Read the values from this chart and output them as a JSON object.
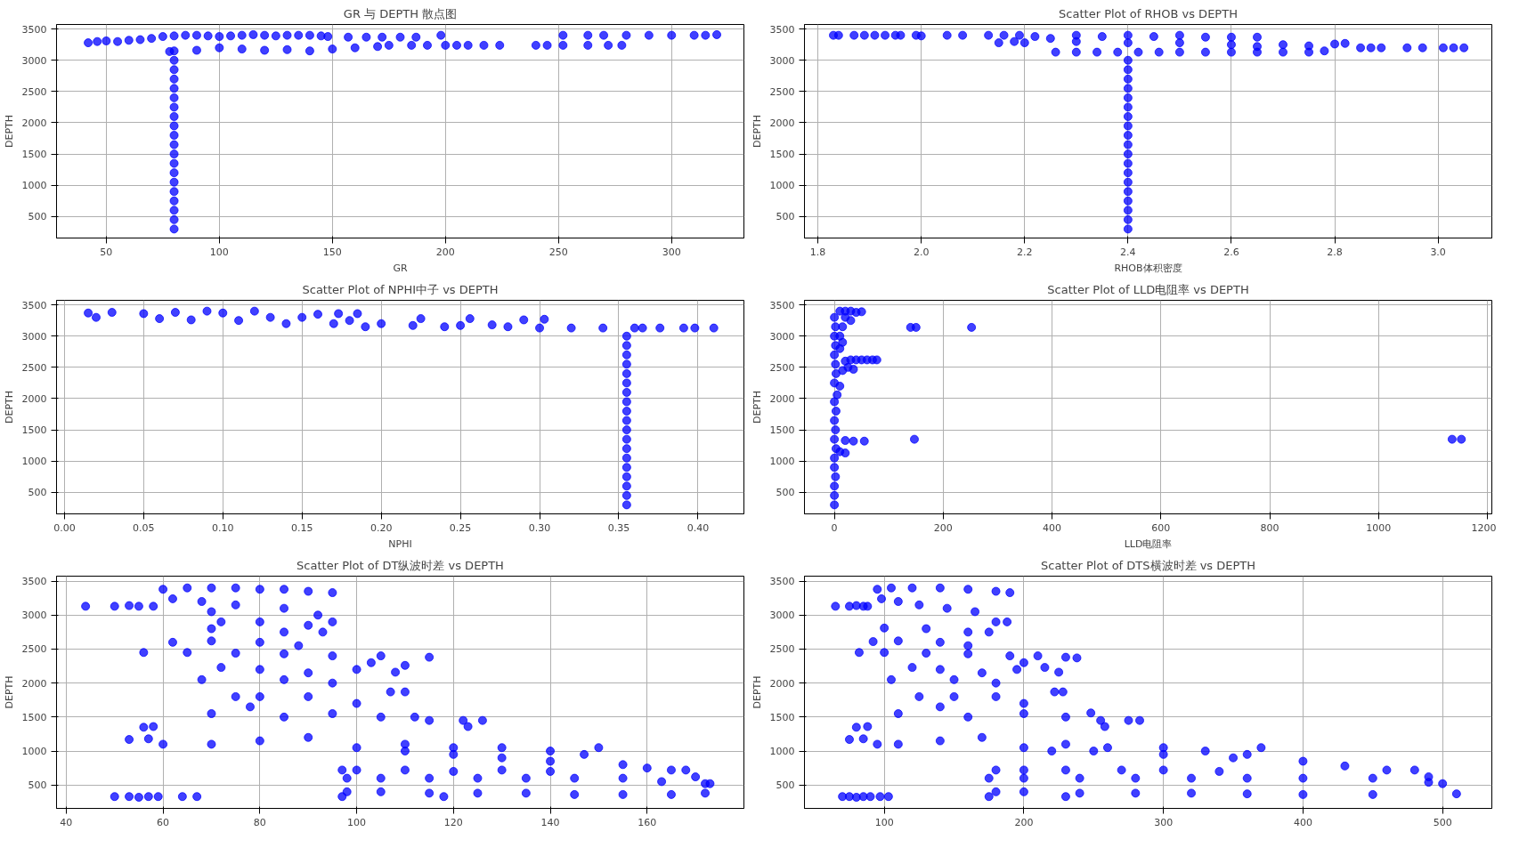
{
  "chart_data": [
    {
      "type": "scatter",
      "title": "GR 与 DEPTH 散点图",
      "xlabel": "GR",
      "ylabel": "DEPTH",
      "color": "#0000ff",
      "marker": "circle",
      "grid": true,
      "xlim": [
        28,
        332
      ],
      "ylim": [
        156,
        3573
      ],
      "xticks": [
        50,
        100,
        150,
        200,
        250,
        300
      ],
      "yticks": [
        500,
        1000,
        1500,
        2000,
        2500,
        3000,
        3500
      ],
      "x": [
        42,
        46,
        50,
        55,
        60,
        65,
        70,
        75,
        80,
        85,
        90,
        95,
        100,
        105,
        110,
        115,
        120,
        125,
        130,
        135,
        140,
        145,
        148,
        80,
        90,
        100,
        110,
        120,
        130,
        140,
        150,
        160,
        170,
        175,
        185,
        192,
        200,
        205,
        210,
        217,
        224,
        240,
        245,
        252,
        263,
        272,
        278,
        157,
        165,
        172,
        180,
        187,
        198,
        252,
        263,
        270,
        280,
        290,
        300,
        310,
        315,
        320,
        80,
        80,
        80,
        80,
        80,
        80,
        80,
        80,
        80,
        80,
        80,
        80,
        80,
        80,
        80,
        80,
        80,
        80,
        80,
        78
      ],
      "values": [
        3280,
        3300,
        3310,
        3300,
        3320,
        3330,
        3350,
        3380,
        3390,
        3400,
        3400,
        3390,
        3380,
        3390,
        3400,
        3410,
        3400,
        3390,
        3400,
        3400,
        3400,
        3390,
        3380,
        3150,
        3160,
        3200,
        3180,
        3160,
        3170,
        3150,
        3180,
        3200,
        3220,
        3240,
        3240,
        3240,
        3240,
        3240,
        3240,
        3240,
        3240,
        3240,
        3240,
        3240,
        3240,
        3240,
        3240,
        3370,
        3370,
        3370,
        3370,
        3370,
        3400,
        3400,
        3400,
        3400,
        3400,
        3400,
        3400,
        3400,
        3400,
        3410,
        300,
        450,
        600,
        750,
        900,
        1050,
        1200,
        1350,
        1500,
        1650,
        1800,
        1950,
        2100,
        2250,
        2400,
        2550,
        2700,
        2850,
        3000,
        3140
      ]
    },
    {
      "type": "scatter",
      "title": "Scatter Plot of RHOB vs DEPTH",
      "xlabel": "RHOB体积密度",
      "ylabel": "DEPTH",
      "color": "#0000ff",
      "marker": "circle",
      "grid": true,
      "xlim": [
        1.774,
        3.104
      ],
      "ylim": [
        156,
        3573
      ],
      "xticks": [
        1.8,
        {
          "value": 2,
          "label": "2.0"
        },
        2.2,
        2.4,
        2.6,
        2.8,
        {
          "value": 3,
          "label": "3.0"
        }
      ],
      "yticks": [
        500,
        1000,
        1500,
        2000,
        2500,
        3000,
        3500
      ],
      "x": [
        1.83,
        1.84,
        1.87,
        1.89,
        1.91,
        1.93,
        1.95,
        1.96,
        1.99,
        2.0,
        2.05,
        2.08,
        2.13,
        2.16,
        2.19,
        2.15,
        2.18,
        2.22,
        2.25,
        2.3,
        2.35,
        2.4,
        2.45,
        2.5,
        2.55,
        2.6,
        2.65,
        2.2,
        2.3,
        2.4,
        2.5,
        2.6,
        2.65,
        2.7,
        2.75,
        2.8,
        2.82,
        2.78,
        2.26,
        2.3,
        2.34,
        2.38,
        2.42,
        2.46,
        2.5,
        2.55,
        2.6,
        2.65,
        2.7,
        2.75,
        2.85,
        2.87,
        2.89,
        2.94,
        2.97,
        3.01,
        3.03,
        3.05,
        2.4,
        2.4,
        2.4,
        2.4,
        2.4,
        2.4,
        2.4,
        2.4,
        2.4,
        2.4,
        2.4,
        2.4,
        2.4,
        2.4,
        2.4,
        2.4,
        2.4,
        2.4,
        2.4
      ],
      "values": [
        3400,
        3400,
        3400,
        3400,
        3400,
        3400,
        3400,
        3400,
        3400,
        3390,
        3400,
        3400,
        3400,
        3400,
        3400,
        3280,
        3300,
        3380,
        3350,
        3400,
        3380,
        3400,
        3380,
        3400,
        3370,
        3370,
        3370,
        3280,
        3300,
        3280,
        3280,
        3250,
        3220,
        3250,
        3230,
        3260,
        3270,
        3150,
        3130,
        3130,
        3130,
        3130,
        3130,
        3130,
        3130,
        3130,
        3130,
        3130,
        3130,
        3130,
        3200,
        3200,
        3200,
        3200,
        3200,
        3200,
        3200,
        3200,
        300,
        450,
        600,
        750,
        900,
        1050,
        1200,
        1350,
        1500,
        1650,
        1800,
        1950,
        2100,
        2250,
        2400,
        2550,
        2700,
        2850,
        3000
      ]
    },
    {
      "type": "scatter",
      "title": "Scatter Plot of NPHI中子 vs DEPTH",
      "xlabel": "NPHI",
      "ylabel": "DEPTH",
      "color": "#0000ff",
      "marker": "circle",
      "grid": true,
      "xlim": [
        -0.005,
        0.429
      ],
      "ylim": [
        156,
        3573
      ],
      "xticks": [
        {
          "value": 0,
          "label": "0.00"
        },
        {
          "value": 0.05,
          "label": "0.05"
        },
        {
          "value": 0.1,
          "label": "0.10"
        },
        {
          "value": 0.15,
          "label": "0.15"
        },
        {
          "value": 0.2,
          "label": "0.20"
        },
        {
          "value": 0.25,
          "label": "0.25"
        },
        {
          "value": 0.3,
          "label": "0.30"
        },
        {
          "value": 0.35,
          "label": "0.35"
        },
        {
          "value": 0.4,
          "label": "0.40"
        }
      ],
      "yticks": [
        500,
        1000,
        1500,
        2000,
        2500,
        3000,
        3500
      ],
      "x": [
        0.015,
        0.02,
        0.03,
        0.05,
        0.07,
        0.09,
        0.1,
        0.12,
        0.11,
        0.13,
        0.15,
        0.16,
        0.18,
        0.17,
        0.2,
        0.22,
        0.25,
        0.28,
        0.3,
        0.32,
        0.34,
        0.06,
        0.08,
        0.14,
        0.19,
        0.24,
        0.27,
        0.29,
        0.303,
        0.256,
        0.225,
        0.185,
        0.173,
        0.36,
        0.365,
        0.376,
        0.391,
        0.398,
        0.41,
        0.355,
        0.355,
        0.355,
        0.355,
        0.355,
        0.355,
        0.355,
        0.355,
        0.355,
        0.355,
        0.355,
        0.355,
        0.355,
        0.355,
        0.355,
        0.355,
        0.355,
        0.355,
        0.355
      ],
      "values": [
        3370,
        3300,
        3380,
        3360,
        3380,
        3400,
        3370,
        3400,
        3250,
        3300,
        3300,
        3350,
        3250,
        3200,
        3200,
        3170,
        3170,
        3150,
        3130,
        3130,
        3130,
        3280,
        3260,
        3200,
        3150,
        3150,
        3180,
        3260,
        3270,
        3280,
        3280,
        3360,
        3360,
        3130,
        3130,
        3130,
        3130,
        3130,
        3130,
        300,
        450,
        600,
        750,
        900,
        1050,
        1200,
        1350,
        1500,
        1650,
        1800,
        1950,
        2100,
        2250,
        2400,
        2550,
        2700,
        2850,
        3000
      ]
    },
    {
      "type": "scatter",
      "title": "Scatter Plot of LLD电阻率 vs DEPTH",
      "xlabel": "LLD电阻率",
      "ylabel": "DEPTH",
      "color": "#0000ff",
      "marker": "circle",
      "grid": true,
      "xlim": [
        -55,
        1208
      ],
      "ylim": [
        156,
        3573
      ],
      "xticks": [
        0,
        200,
        400,
        600,
        800,
        1000,
        1200
      ],
      "yticks": [
        500,
        1000,
        1500,
        2000,
        2500,
        3000,
        3500
      ],
      "x": [
        0,
        0,
        0,
        2,
        0,
        0,
        3,
        0,
        2,
        0,
        3,
        0,
        0,
        3,
        2,
        0,
        2,
        0,
        2,
        0,
        10,
        20,
        30,
        40,
        50,
        20,
        30,
        15,
        10,
        15,
        10,
        20,
        30,
        40,
        50,
        60,
        70,
        78,
        25,
        35,
        15,
        10,
        5,
        140,
        150,
        252,
        147,
        1135,
        1152,
        20,
        35,
        55,
        10,
        20
      ],
      "values": [
        300,
        450,
        600,
        750,
        900,
        1050,
        1200,
        1350,
        1500,
        1650,
        1800,
        1950,
        2250,
        2400,
        2550,
        2700,
        2850,
        3000,
        3150,
        3300,
        3400,
        3400,
        3400,
        3380,
        3390,
        3300,
        3250,
        3150,
        3000,
        2900,
        2800,
        2600,
        2620,
        2620,
        2620,
        2620,
        2620,
        2620,
        2500,
        2470,
        2450,
        2200,
        2060,
        3140,
        3140,
        3140,
        1350,
        1350,
        1350,
        1330,
        1320,
        1320,
        1150,
        1130
      ]
    },
    {
      "type": "scatter",
      "title": "Scatter Plot of DT纵波时差 vs DEPTH",
      "ylabel": "DEPTH",
      "color": "#0000ff",
      "marker": "circle",
      "grid": true,
      "xlim": [
        38,
        180
      ],
      "ylim": [
        156,
        3573
      ],
      "xticks": [
        40,
        60,
        80,
        100,
        120,
        140,
        160
      ],
      "yticks": [
        500,
        1000,
        1500,
        2000,
        2500,
        3000,
        3500
      ],
      "x": [
        44,
        50,
        53,
        55,
        58,
        60,
        65,
        70,
        75,
        80,
        85,
        90,
        95,
        62,
        68,
        75,
        85,
        92,
        70,
        72,
        80,
        90,
        95,
        70,
        85,
        93,
        62,
        70,
        80,
        88,
        56,
        65,
        75,
        85,
        95,
        105,
        115,
        103,
        110,
        100,
        90,
        80,
        72,
        68,
        85,
        95,
        108,
        107,
        110,
        80,
        90,
        100,
        75,
        78,
        70,
        85,
        95,
        105,
        112,
        115,
        122,
        126,
        123,
        56,
        58,
        53,
        57,
        60,
        70,
        80,
        90,
        100,
        110,
        120,
        130,
        140,
        150,
        147,
        155,
        160,
        165,
        168,
        170,
        97,
        100,
        110,
        120,
        130,
        140,
        98,
        105,
        115,
        125,
        135,
        145,
        155,
        163,
        172,
        173,
        98,
        105,
        115,
        125,
        135,
        145,
        155,
        165,
        172,
        97,
        118,
        50,
        53,
        55,
        57,
        59,
        64,
        67,
        130,
        140,
        120,
        110
      ],
      "values": [
        3130,
        3130,
        3140,
        3130,
        3130,
        3380,
        3400,
        3400,
        3400,
        3380,
        3380,
        3350,
        3330,
        3240,
        3200,
        3150,
        3100,
        3000,
        3050,
        2900,
        2900,
        2850,
        2900,
        2800,
        2750,
        2750,
        2600,
        2620,
        2600,
        2550,
        2450,
        2450,
        2440,
        2430,
        2400,
        2400,
        2380,
        2300,
        2260,
        2200,
        2150,
        2200,
        2230,
        2050,
        2050,
        2000,
        2160,
        1870,
        1870,
        1800,
        1800,
        1700,
        1800,
        1650,
        1550,
        1500,
        1550,
        1500,
        1500,
        1450,
        1450,
        1450,
        1360,
        1350,
        1360,
        1170,
        1180,
        1100,
        1100,
        1150,
        1200,
        1050,
        1100,
        1050,
        1050,
        1000,
        1050,
        950,
        800,
        750,
        720,
        720,
        620,
        720,
        720,
        720,
        700,
        720,
        700,
        600,
        600,
        600,
        600,
        600,
        600,
        600,
        550,
        520,
        520,
        400,
        400,
        380,
        380,
        380,
        360,
        360,
        360,
        380,
        330,
        330,
        330,
        330,
        320,
        330,
        330,
        330,
        330,
        900,
        850,
        950,
        1000
      ]
    },
    {
      "type": "scatter",
      "title": "Scatter Plot of DTS横波时差 vs DEPTH",
      "ylabel": "DEPTH",
      "color": "#0000ff",
      "marker": "circle",
      "grid": true,
      "xlim": [
        42.8,
        535.3
      ],
      "ylim": [
        156,
        3573
      ],
      "xticks": [
        100,
        200,
        300,
        400,
        500
      ],
      "yticks": [
        500,
        1000,
        1500,
        2000,
        2500,
        3000,
        3500
      ],
      "x": [
        65,
        75,
        80,
        85,
        88,
        95,
        105,
        120,
        140,
        160,
        180,
        190,
        98,
        110,
        125,
        145,
        165,
        180,
        188,
        100,
        130,
        160,
        175,
        92,
        110,
        140,
        160,
        82,
        100,
        130,
        160,
        190,
        210,
        230,
        238,
        200,
        215,
        195,
        170,
        140,
        120,
        105,
        150,
        180,
        225,
        222,
        228,
        150,
        180,
        200,
        125,
        140,
        110,
        160,
        200,
        230,
        248,
        255,
        275,
        283,
        258,
        80,
        88,
        75,
        85,
        95,
        110,
        140,
        170,
        200,
        230,
        260,
        300,
        330,
        370,
        360,
        400,
        430,
        460,
        480,
        490,
        180,
        200,
        230,
        270,
        300,
        340,
        175,
        200,
        240,
        280,
        320,
        360,
        400,
        450,
        490,
        500,
        180,
        200,
        240,
        280,
        320,
        360,
        400,
        450,
        510,
        175,
        230,
        70,
        75,
        80,
        85,
        90,
        97,
        103,
        300,
        350,
        250,
        220
      ],
      "values": [
        3130,
        3130,
        3140,
        3130,
        3130,
        3380,
        3400,
        3400,
        3400,
        3380,
        3350,
        3330,
        3240,
        3200,
        3150,
        3100,
        3050,
        2900,
        2900,
        2810,
        2800,
        2750,
        2750,
        2610,
        2620,
        2600,
        2550,
        2450,
        2450,
        2440,
        2430,
        2400,
        2400,
        2380,
        2370,
        2300,
        2230,
        2200,
        2150,
        2200,
        2230,
        2050,
        2050,
        2000,
        2160,
        1870,
        1870,
        1800,
        1800,
        1700,
        1800,
        1650,
        1550,
        1500,
        1550,
        1500,
        1560,
        1450,
        1450,
        1450,
        1360,
        1350,
        1360,
        1170,
        1180,
        1100,
        1100,
        1150,
        1200,
        1050,
        1100,
        1050,
        1050,
        1000,
        1050,
        950,
        850,
        780,
        720,
        720,
        620,
        720,
        720,
        720,
        720,
        720,
        700,
        600,
        600,
        600,
        600,
        600,
        600,
        600,
        600,
        540,
        520,
        400,
        400,
        380,
        380,
        380,
        370,
        360,
        360,
        370,
        330,
        330,
        330,
        330,
        320,
        330,
        330,
        330,
        330,
        950,
        900,
        1000,
        1000
      ]
    }
  ]
}
